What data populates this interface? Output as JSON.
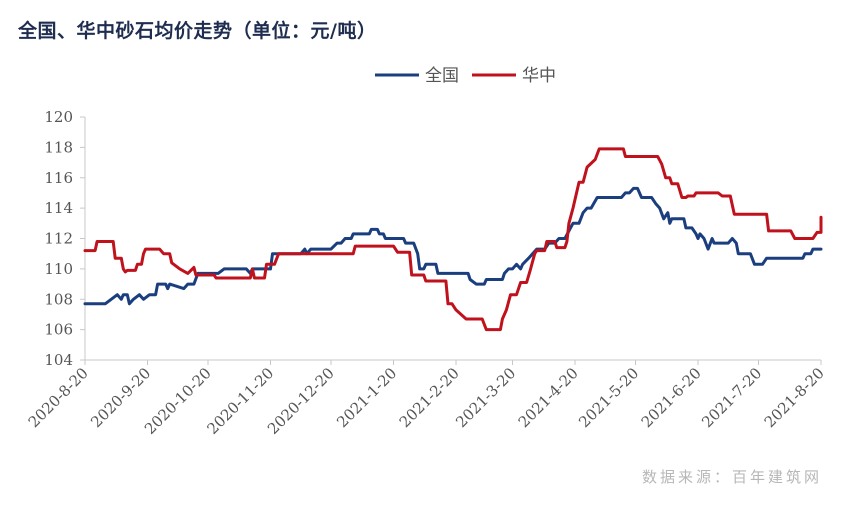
{
  "title": "全国、华中砂石均价走势（单位：元/吨）",
  "source": "数据来源：百年建筑网",
  "colors": {
    "national": "#1b3f7e",
    "central": "#c0121d",
    "axis": "#c8c8c8",
    "tick_text": "#555555"
  },
  "chart_data": {
    "type": "line",
    "title": "全国、华中砂石均价走势（单位：元/吨）",
    "xlabel": "",
    "ylabel": "",
    "ylim": [
      104,
      120
    ],
    "yticks": [
      104,
      106,
      108,
      110,
      112,
      114,
      116,
      118,
      120
    ],
    "x_ticks": [
      "2020-8-20",
      "2020-9-20",
      "2020-10-20",
      "2020-11-20",
      "2020-12-20",
      "2021-1-20",
      "2021-2-20",
      "2021-3-20",
      "2021-4-20",
      "2021-5-20",
      "2021-6-20",
      "2021-7-20",
      "2021-8-20"
    ],
    "x_start": "2020-08-20",
    "x_end": "2021-08-20",
    "legend_position": "top-center",
    "grid": false,
    "series": [
      {
        "name": "全国",
        "color": "#1b3f7e",
        "points": [
          [
            "2020-08-20",
            107.7
          ],
          [
            "2020-08-30",
            107.7
          ],
          [
            "2020-09-02",
            108.0
          ],
          [
            "2020-09-05",
            108.3
          ],
          [
            "2020-09-07",
            108.0
          ],
          [
            "2020-09-08",
            108.3
          ],
          [
            "2020-09-10",
            108.3
          ],
          [
            "2020-09-11",
            107.7
          ],
          [
            "2020-09-13",
            108.0
          ],
          [
            "2020-09-16",
            108.3
          ],
          [
            "2020-09-18",
            108.0
          ],
          [
            "2020-09-21",
            108.3
          ],
          [
            "2020-09-24",
            108.3
          ],
          [
            "2020-09-25",
            109.0
          ],
          [
            "2020-09-29",
            109.0
          ],
          [
            "2020-09-30",
            108.7
          ],
          [
            "2020-10-01",
            109.0
          ],
          [
            "2020-10-08",
            108.7
          ],
          [
            "2020-10-10",
            109.0
          ],
          [
            "2020-10-13",
            109.0
          ],
          [
            "2020-10-15",
            109.7
          ],
          [
            "2020-10-25",
            109.7
          ],
          [
            "2020-10-28",
            110.0
          ],
          [
            "2020-11-08",
            110.0
          ],
          [
            "2020-11-10",
            109.7
          ],
          [
            "2020-11-11",
            110.0
          ],
          [
            "2020-11-20",
            110.0
          ],
          [
            "2020-11-21",
            111.0
          ],
          [
            "2020-12-05",
            111.0
          ],
          [
            "2020-12-07",
            111.3
          ],
          [
            "2020-12-08",
            111.0
          ],
          [
            "2020-12-10",
            111.3
          ],
          [
            "2020-12-20",
            111.3
          ],
          [
            "2020-12-23",
            111.7
          ],
          [
            "2020-12-25",
            111.7
          ],
          [
            "2020-12-27",
            112.0
          ],
          [
            "2020-12-30",
            112.0
          ],
          [
            "2020-12-31",
            112.3
          ],
          [
            "2021-01-08",
            112.3
          ],
          [
            "2021-01-09",
            112.6
          ],
          [
            "2021-01-12",
            112.6
          ],
          [
            "2021-01-13",
            112.3
          ],
          [
            "2021-01-15",
            112.3
          ],
          [
            "2021-01-16",
            112.0
          ],
          [
            "2021-01-25",
            112.0
          ],
          [
            "2021-01-26",
            111.7
          ],
          [
            "2021-01-30",
            111.7
          ],
          [
            "2021-02-01",
            111.0
          ],
          [
            "2021-02-02",
            110.0
          ],
          [
            "2021-02-04",
            110.0
          ],
          [
            "2021-02-05",
            110.3
          ],
          [
            "2021-02-10",
            110.3
          ],
          [
            "2021-02-11",
            109.7
          ],
          [
            "2021-02-26",
            109.7
          ],
          [
            "2021-02-27",
            109.3
          ],
          [
            "2021-03-02",
            109.0
          ],
          [
            "2021-03-06",
            109.0
          ],
          [
            "2021-03-07",
            109.3
          ],
          [
            "2021-03-15",
            109.3
          ],
          [
            "2021-03-16",
            109.7
          ],
          [
            "2021-03-18",
            110.0
          ],
          [
            "2021-03-20",
            110.0
          ],
          [
            "2021-03-22",
            110.3
          ],
          [
            "2021-03-24",
            110.0
          ],
          [
            "2021-03-25",
            110.3
          ],
          [
            "2021-03-28",
            110.7
          ],
          [
            "2021-03-30",
            111.0
          ],
          [
            "2021-04-01",
            111.3
          ],
          [
            "2021-04-05",
            111.3
          ],
          [
            "2021-04-07",
            111.7
          ],
          [
            "2021-04-10",
            111.7
          ],
          [
            "2021-04-12",
            112.0
          ],
          [
            "2021-04-15",
            112.0
          ],
          [
            "2021-04-17",
            112.5
          ],
          [
            "2021-04-19",
            113.0
          ],
          [
            "2021-04-22",
            113.0
          ],
          [
            "2021-04-24",
            113.7
          ],
          [
            "2021-04-26",
            114.0
          ],
          [
            "2021-04-28",
            114.0
          ],
          [
            "2021-05-01",
            114.7
          ],
          [
            "2021-05-13",
            114.7
          ],
          [
            "2021-05-15",
            115.0
          ],
          [
            "2021-05-17",
            115.0
          ],
          [
            "2021-05-19",
            115.3
          ],
          [
            "2021-05-21",
            115.3
          ],
          [
            "2021-05-22",
            115.0
          ],
          [
            "2021-05-23",
            114.7
          ],
          [
            "2021-05-28",
            114.7
          ],
          [
            "2021-05-30",
            114.3
          ],
          [
            "2021-06-01",
            114.0
          ],
          [
            "2021-06-03",
            113.3
          ],
          [
            "2021-06-05",
            113.7
          ],
          [
            "2021-06-06",
            113.0
          ],
          [
            "2021-06-07",
            113.3
          ],
          [
            "2021-06-13",
            113.3
          ],
          [
            "2021-06-14",
            112.7
          ],
          [
            "2021-06-17",
            112.7
          ],
          [
            "2021-06-19",
            112.3
          ],
          [
            "2021-06-20",
            112.0
          ],
          [
            "2021-06-21",
            112.3
          ],
          [
            "2021-06-23",
            112.0
          ],
          [
            "2021-06-25",
            111.3
          ],
          [
            "2021-06-27",
            112.0
          ],
          [
            "2021-06-28",
            111.7
          ],
          [
            "2021-07-05",
            111.7
          ],
          [
            "2021-07-07",
            112.0
          ],
          [
            "2021-07-09",
            111.7
          ],
          [
            "2021-07-10",
            111.0
          ],
          [
            "2021-07-16",
            111.0
          ],
          [
            "2021-07-18",
            110.3
          ],
          [
            "2021-07-22",
            110.3
          ],
          [
            "2021-07-24",
            110.7
          ],
          [
            "2021-08-11",
            110.7
          ],
          [
            "2021-08-12",
            111.0
          ],
          [
            "2021-08-15",
            111.0
          ],
          [
            "2021-08-16",
            111.3
          ],
          [
            "2021-08-20",
            111.3
          ]
        ]
      },
      {
        "name": "华中",
        "color": "#c0121d",
        "points": [
          [
            "2020-08-20",
            111.2
          ],
          [
            "2020-08-25",
            111.2
          ],
          [
            "2020-08-26",
            111.8
          ],
          [
            "2020-09-03",
            111.8
          ],
          [
            "2020-09-04",
            110.7
          ],
          [
            "2020-09-07",
            110.7
          ],
          [
            "2020-09-08",
            110.0
          ],
          [
            "2020-09-09",
            109.8
          ],
          [
            "2020-09-10",
            109.9
          ],
          [
            "2020-09-14",
            109.9
          ],
          [
            "2020-09-15",
            110.3
          ],
          [
            "2020-09-17",
            110.3
          ],
          [
            "2020-09-18",
            111.0
          ],
          [
            "2020-09-19",
            111.3
          ],
          [
            "2020-09-26",
            111.3
          ],
          [
            "2020-09-28",
            111.0
          ],
          [
            "2020-10-01",
            111.0
          ],
          [
            "2020-10-02",
            110.4
          ],
          [
            "2020-10-06",
            110.0
          ],
          [
            "2020-10-10",
            109.7
          ],
          [
            "2020-10-13",
            110.1
          ],
          [
            "2020-10-14",
            109.6
          ],
          [
            "2020-10-23",
            109.6
          ],
          [
            "2020-10-24",
            109.4
          ],
          [
            "2020-11-10",
            109.4
          ],
          [
            "2020-11-11",
            110.0
          ],
          [
            "2020-11-12",
            109.4
          ],
          [
            "2020-11-17",
            109.4
          ],
          [
            "2020-11-18",
            110.3
          ],
          [
            "2020-11-22",
            110.3
          ],
          [
            "2020-11-24",
            111.0
          ],
          [
            "2020-12-31",
            111.0
          ],
          [
            "2021-01-01",
            111.5
          ],
          [
            "2021-01-20",
            111.5
          ],
          [
            "2021-01-22",
            111.1
          ],
          [
            "2021-01-28",
            111.1
          ],
          [
            "2021-01-29",
            109.6
          ],
          [
            "2021-02-04",
            109.6
          ],
          [
            "2021-02-05",
            109.2
          ],
          [
            "2021-02-15",
            109.2
          ],
          [
            "2021-02-16",
            107.7
          ],
          [
            "2021-02-18",
            107.7
          ],
          [
            "2021-02-20",
            107.3
          ],
          [
            "2021-02-25",
            106.7
          ],
          [
            "2021-03-05",
            106.7
          ],
          [
            "2021-03-07",
            106.0
          ],
          [
            "2021-03-14",
            106.0
          ],
          [
            "2021-03-15",
            106.7
          ],
          [
            "2021-03-17",
            107.3
          ],
          [
            "2021-03-19",
            108.3
          ],
          [
            "2021-03-22",
            108.3
          ],
          [
            "2021-03-24",
            109.1
          ],
          [
            "2021-03-27",
            109.1
          ],
          [
            "2021-03-29",
            110.0
          ],
          [
            "2021-03-31",
            111.0
          ],
          [
            "2021-04-01",
            111.2
          ],
          [
            "2021-04-05",
            111.2
          ],
          [
            "2021-04-06",
            111.8
          ],
          [
            "2021-04-10",
            111.8
          ],
          [
            "2021-04-11",
            111.4
          ],
          [
            "2021-04-15",
            111.4
          ],
          [
            "2021-04-16",
            111.8
          ],
          [
            "2021-04-17",
            113.0
          ],
          [
            "2021-04-19",
            114.0
          ],
          [
            "2021-04-22",
            115.7
          ],
          [
            "2021-04-24",
            115.7
          ],
          [
            "2021-04-26",
            116.7
          ],
          [
            "2021-04-30",
            117.2
          ],
          [
            "2021-05-02",
            117.9
          ],
          [
            "2021-05-14",
            117.9
          ],
          [
            "2021-05-15",
            117.4
          ],
          [
            "2021-05-31",
            117.4
          ],
          [
            "2021-06-02",
            116.9
          ],
          [
            "2021-06-04",
            116.0
          ],
          [
            "2021-06-06",
            116.0
          ],
          [
            "2021-06-07",
            115.6
          ],
          [
            "2021-06-10",
            115.6
          ],
          [
            "2021-06-12",
            114.7
          ],
          [
            "2021-06-14",
            114.7
          ],
          [
            "2021-06-15",
            114.8
          ],
          [
            "2021-06-18",
            114.8
          ],
          [
            "2021-06-19",
            115.0
          ],
          [
            "2021-06-30",
            115.0
          ],
          [
            "2021-07-02",
            114.8
          ],
          [
            "2021-07-06",
            114.8
          ],
          [
            "2021-07-08",
            113.6
          ],
          [
            "2021-07-24",
            113.6
          ],
          [
            "2021-07-25",
            112.5
          ],
          [
            "2021-08-05",
            112.5
          ],
          [
            "2021-08-07",
            112.0
          ],
          [
            "2021-08-16",
            112.0
          ],
          [
            "2021-08-18",
            112.4
          ],
          [
            "2021-08-23",
            112.4
          ],
          [
            "2021-08-25",
            113.4
          ],
          [
            "2021-08-28",
            113.4
          ]
        ]
      }
    ]
  }
}
